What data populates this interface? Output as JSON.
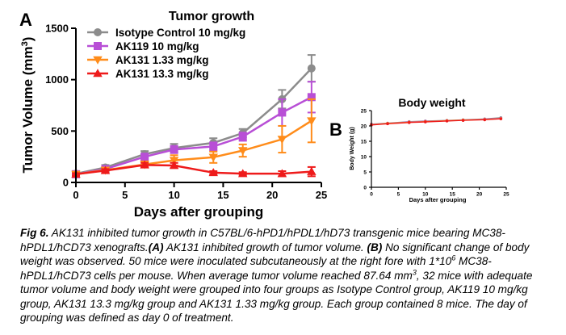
{
  "panels": {
    "a": "A",
    "b": "B"
  },
  "chart_data": [
    {
      "type": "line",
      "title": "Tumor growth",
      "xlabel": "Days after grouping",
      "ylabel": "Tumor Volume (mm",
      "ylabel_sup": "3",
      "ylabel_end": ")",
      "xlim": [
        0,
        25
      ],
      "ylim": [
        0,
        1500
      ],
      "xticks": [
        0,
        5,
        10,
        15,
        20,
        25
      ],
      "yticks": [
        0,
        500,
        1000,
        1500
      ],
      "grid": false,
      "legend": "top-left",
      "x": [
        0,
        3,
        7,
        10,
        14,
        17,
        21,
        24
      ],
      "series": [
        {
          "name": "Isotype Control 10 mg/kg",
          "color": "#8c8c8c",
          "marker": "circle",
          "values": [
            85,
            145,
            275,
            335,
            385,
            480,
            810,
            1110
          ],
          "err": [
            20,
            25,
            30,
            40,
            45,
            40,
            90,
            130
          ]
        },
        {
          "name": "AK119 10 mg/kg",
          "color": "#b84fd6",
          "marker": "square",
          "values": [
            80,
            130,
            250,
            320,
            350,
            445,
            680,
            830
          ],
          "err": [
            15,
            20,
            25,
            35,
            40,
            40,
            130,
            150
          ]
        },
        {
          "name": "AK131 1.33 mg/kg",
          "color": "#ff8c1a",
          "marker": "triangle-down",
          "values": [
            80,
            120,
            175,
            215,
            245,
            310,
            420,
            600
          ],
          "err": [
            15,
            20,
            30,
            50,
            55,
            60,
            130,
            210
          ]
        },
        {
          "name": "AK131 13.3 mg/kg",
          "color": "#ee1b1b",
          "marker": "triangle-up",
          "values": [
            80,
            115,
            170,
            165,
            95,
            85,
            85,
            105
          ],
          "err": [
            10,
            15,
            20,
            25,
            15,
            15,
            25,
            45
          ]
        }
      ]
    },
    {
      "type": "line",
      "title": "Body weight",
      "xlabel": "Days after grouping",
      "ylabel": "Body Weight (g)",
      "xlim": [
        0,
        25
      ],
      "ylim": [
        0,
        25
      ],
      "xticks": [
        0,
        5,
        10,
        15,
        20,
        25
      ],
      "yticks": [
        0,
        5,
        10,
        15,
        20,
        25
      ],
      "grid": false,
      "x": [
        0,
        3,
        7,
        10,
        14,
        17,
        21,
        24
      ],
      "series": [
        {
          "color": "#8c8c8c",
          "values": [
            20.6,
            20.9,
            21.4,
            21.6,
            21.8,
            22.0,
            22.3,
            22.7
          ]
        },
        {
          "color": "#b84fd6",
          "values": [
            20.5,
            20.8,
            21.3,
            21.5,
            21.7,
            21.9,
            22.2,
            22.5
          ]
        },
        {
          "color": "#ff8c1a",
          "values": [
            20.4,
            20.8,
            21.2,
            21.4,
            21.7,
            21.9,
            22.1,
            22.4
          ]
        },
        {
          "color": "#ee1b1b",
          "values": [
            20.3,
            20.7,
            21.1,
            21.3,
            21.6,
            21.8,
            22.0,
            22.3
          ]
        }
      ]
    }
  ],
  "caption": {
    "fig": "Fig 6.",
    "t1": " AK131 inhibited tumor growth in C57BL/6-hPD1/hPDL1/hD73 transgenic mice bearing MC38-hPDL1/hCD73 xenografts.",
    "a": "(A)",
    "t2": " AK131 inhibited growth of tumor volume. ",
    "b": "(B)",
    "t3": " No significant change of body weight was observed. 50 mice were inoculated subcutaneously at the right fore with 1*10",
    "sup1": "6",
    "t4": " MC38-hPDL1/hCD73 cells per mouse. When average tumor volume reached 87.64 mm",
    "sup2": "3",
    "t5": ", 32 mice with adequate tumor volume and body weight were grouped into four groups as Isotype Control group, AK119 10 mg/kg group, AK131 13.3 mg/kg group and AK131 1.33 mg/kg group. Each group contained 8 mice. The day of grouping was defined as day 0 of treatment."
  }
}
